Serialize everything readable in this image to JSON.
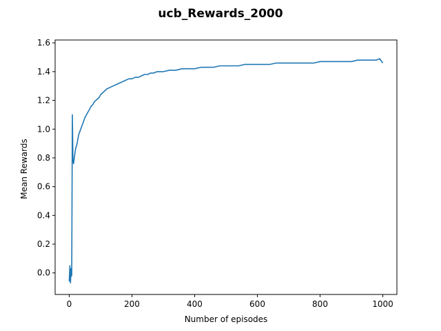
{
  "chart_data": {
    "type": "line",
    "title": "ucb_Rewards_2000",
    "xlabel": "Number of episodes",
    "ylabel": "Mean Rewards",
    "xlim": [
      -45,
      1045
    ],
    "ylim": [
      -0.15,
      1.62
    ],
    "xticks": [
      0,
      200,
      400,
      600,
      800,
      1000
    ],
    "yticks": [
      0.0,
      0.2,
      0.4,
      0.6,
      0.8,
      1.0,
      1.2,
      1.4,
      1.6
    ],
    "grid": false,
    "legend": "none",
    "series": [
      {
        "color": "#1f77b4",
        "x": [
          0,
          2,
          4,
          6,
          8,
          10,
          12,
          14,
          16,
          18,
          20,
          25,
          30,
          35,
          40,
          45,
          50,
          55,
          60,
          65,
          70,
          75,
          80,
          85,
          90,
          95,
          100,
          110,
          120,
          130,
          140,
          150,
          160,
          170,
          180,
          190,
          200,
          210,
          220,
          230,
          240,
          250,
          260,
          270,
          280,
          290,
          300,
          320,
          340,
          360,
          380,
          400,
          420,
          440,
          460,
          480,
          500,
          520,
          540,
          560,
          580,
          600,
          620,
          640,
          660,
          680,
          700,
          720,
          740,
          760,
          780,
          800,
          820,
          840,
          860,
          880,
          900,
          920,
          940,
          960,
          980,
          990,
          1000
        ],
        "y": [
          -0.06,
          0.05,
          -0.07,
          0.03,
          -0.02,
          1.1,
          0.78,
          0.76,
          0.8,
          0.83,
          0.86,
          0.9,
          0.96,
          0.99,
          1.02,
          1.05,
          1.08,
          1.1,
          1.12,
          1.14,
          1.16,
          1.17,
          1.19,
          1.2,
          1.21,
          1.22,
          1.24,
          1.26,
          1.28,
          1.29,
          1.3,
          1.31,
          1.32,
          1.33,
          1.34,
          1.35,
          1.35,
          1.36,
          1.36,
          1.37,
          1.38,
          1.38,
          1.39,
          1.39,
          1.4,
          1.4,
          1.4,
          1.41,
          1.41,
          1.42,
          1.42,
          1.42,
          1.43,
          1.43,
          1.43,
          1.44,
          1.44,
          1.44,
          1.44,
          1.45,
          1.45,
          1.45,
          1.45,
          1.45,
          1.46,
          1.46,
          1.46,
          1.46,
          1.46,
          1.46,
          1.46,
          1.47,
          1.47,
          1.47,
          1.47,
          1.47,
          1.47,
          1.48,
          1.48,
          1.48,
          1.48,
          1.49,
          1.46
        ]
      }
    ]
  }
}
